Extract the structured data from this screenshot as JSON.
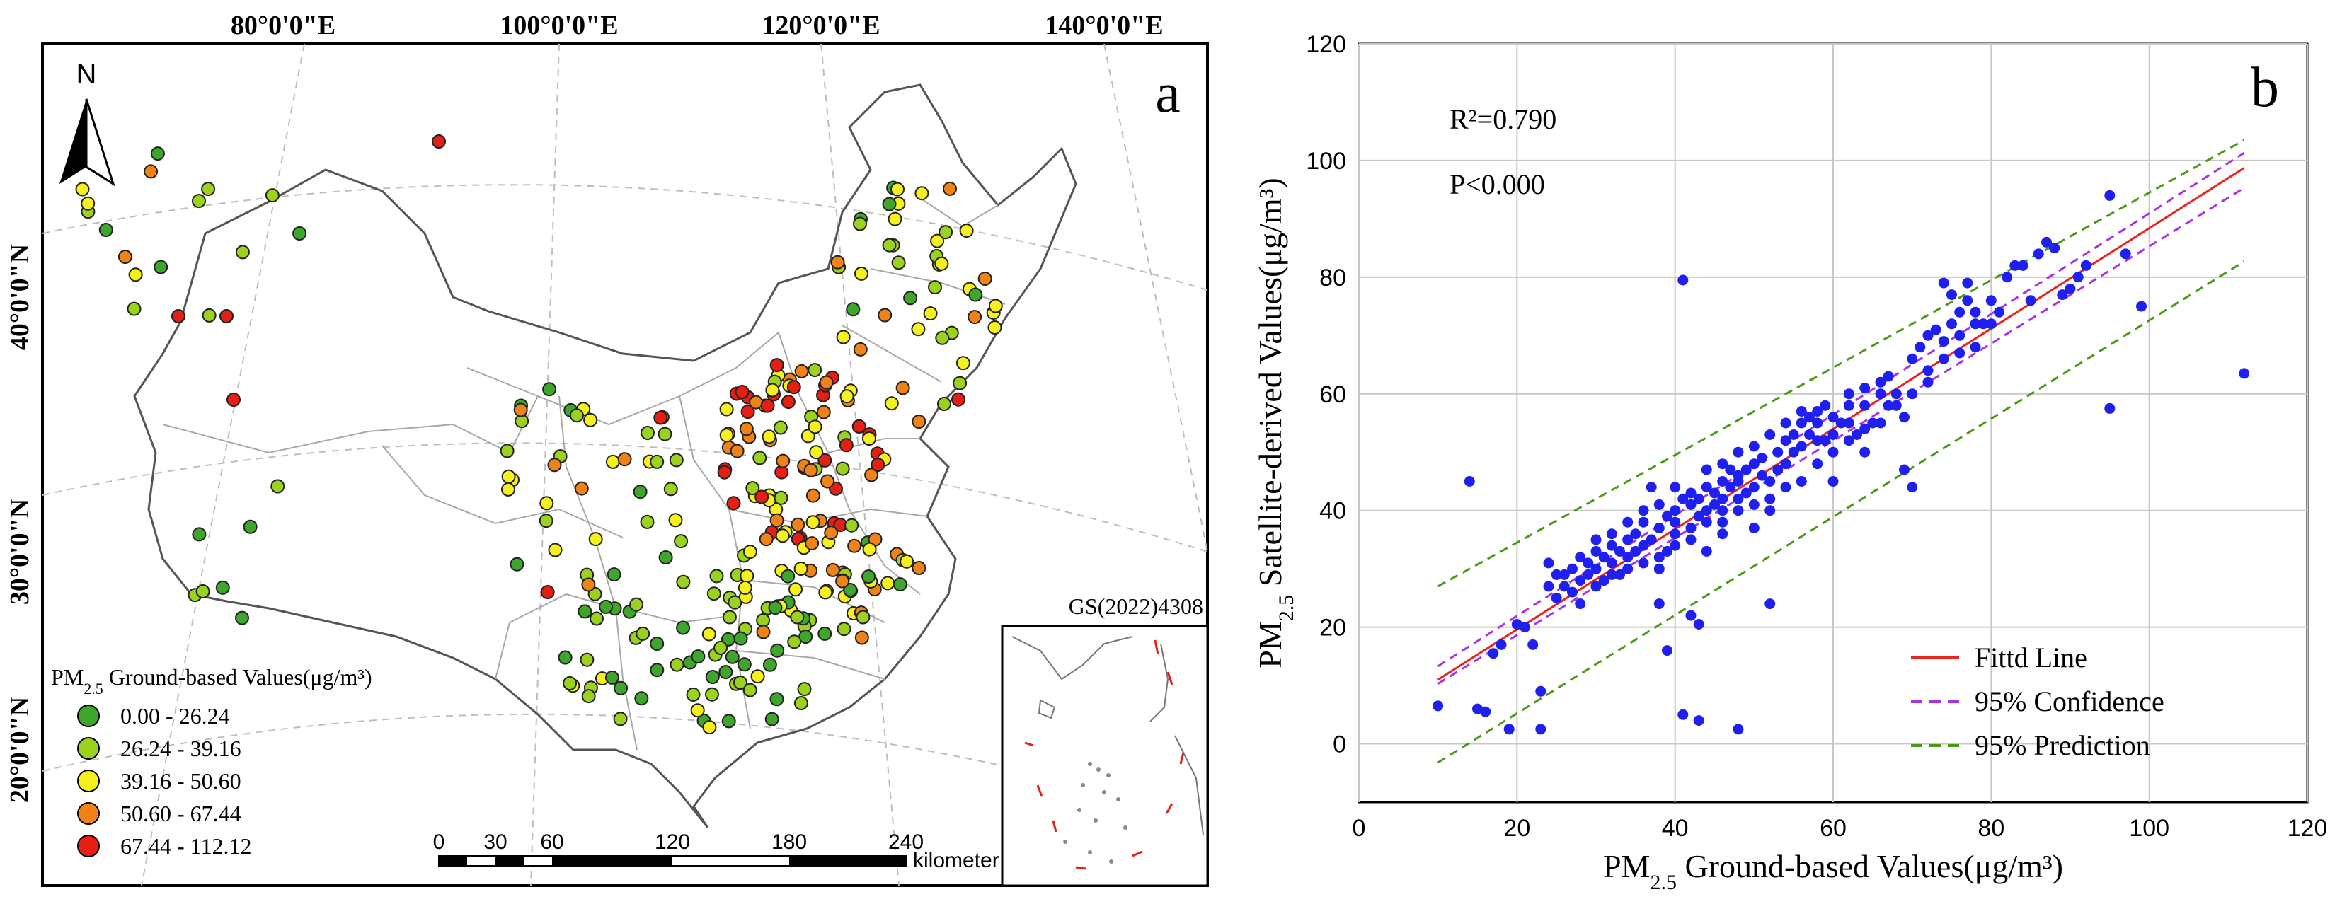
{
  "panel_a": {
    "panel_label": "a",
    "north_label": "N",
    "lon_labels": [
      "80°0'0\"E",
      "100°0'0\"E",
      "120°0'0\"E",
      "140°0'0\"E"
    ],
    "lat_labels": [
      "40°0'0\"N",
      "30°0'0\"N",
      "20°0'0\"N"
    ],
    "inset_label": "GS(2022)4308",
    "legend": {
      "title_prefix": "PM",
      "title_sub": "2.5",
      "title_suffix": " Ground-based Values(μg/m³)",
      "classes": [
        {
          "label": "0.00 - 26.24",
          "color": "#3ea62a"
        },
        {
          "label": "26.24 - 39.16",
          "color": "#9ad21e"
        },
        {
          "label": "39.16 - 50.60",
          "color": "#f5f01e"
        },
        {
          "label": "50.60 - 67.44",
          "color": "#f08218"
        },
        {
          "label": "67.44 - 112.12",
          "color": "#e61e14"
        }
      ]
    },
    "scale_bar": {
      "ticks": [
        "0",
        "30",
        "60",
        "120",
        "180",
        "240"
      ],
      "unit": "kilometer"
    }
  },
  "chart_data": {
    "type": "scatter",
    "panel_label": "b",
    "xlabel_prefix": "PM",
    "xlabel_sub": "2.5",
    "xlabel_suffix": " Ground-based Values(μg/m³)",
    "ylabel_prefix": "PM",
    "ylabel_sub": "2.5",
    "ylabel_suffix": " Satellite-derived Values(μg/m³)",
    "xlim": [
      0,
      120
    ],
    "ylim": [
      -10,
      120
    ],
    "xticks": [
      0,
      20,
      40,
      60,
      80,
      100,
      120
    ],
    "yticks": [
      0,
      20,
      40,
      60,
      80,
      100,
      120
    ],
    "grid": true,
    "r2_text": "R²=0.790",
    "p_text": "P<0.000",
    "fit": {
      "slope": 0.86,
      "intercept": 2.4,
      "x_range": [
        10,
        112
      ]
    },
    "confidence_band": {
      "lower": [
        [
          10,
          10.3
        ],
        [
          112,
          95.3
        ]
      ],
      "upper": [
        [
          10,
          13.3
        ],
        [
          112,
          101.3
        ]
      ]
    },
    "prediction_band": {
      "lower": [
        [
          10,
          -3.2
        ],
        [
          112,
          82.7
        ]
      ],
      "upper": [
        [
          10,
          27.0
        ],
        [
          112,
          103.5
        ]
      ]
    },
    "legend": [
      {
        "name": "Fittd Line",
        "color": "#e8241c",
        "style": "solid"
      },
      {
        "name": "95% Confidence",
        "color": "#a832e8",
        "style": "dashed"
      },
      {
        "name": "95% Prediction",
        "color": "#4a9a18",
        "style": "dashed"
      }
    ],
    "point_color": "#1f1ff0",
    "points": [
      [
        10,
        6.5
      ],
      [
        14,
        45
      ],
      [
        15,
        6
      ],
      [
        16,
        5.5
      ],
      [
        17,
        15.5
      ],
      [
        18,
        17
      ],
      [
        19,
        2.5
      ],
      [
        20,
        20.5
      ],
      [
        21,
        20
      ],
      [
        22,
        17
      ],
      [
        23,
        2.5
      ],
      [
        23,
        9
      ],
      [
        24,
        27
      ],
      [
        25,
        29
      ],
      [
        25,
        25
      ],
      [
        26,
        27
      ],
      [
        27,
        26
      ],
      [
        27,
        30
      ],
      [
        28,
        28
      ],
      [
        28,
        24
      ],
      [
        29,
        31
      ],
      [
        29,
        29
      ],
      [
        30,
        30
      ],
      [
        30,
        33
      ],
      [
        31,
        28
      ],
      [
        31,
        32
      ],
      [
        32,
        34
      ],
      [
        32,
        31
      ],
      [
        33,
        29
      ],
      [
        33,
        33
      ],
      [
        34,
        32
      ],
      [
        34,
        35
      ],
      [
        35,
        36
      ],
      [
        35,
        33
      ],
      [
        36,
        31
      ],
      [
        36,
        38
      ],
      [
        37,
        35
      ],
      [
        37,
        44
      ],
      [
        38,
        24
      ],
      [
        38,
        32
      ],
      [
        38,
        37
      ],
      [
        39,
        16
      ],
      [
        39,
        33
      ],
      [
        39,
        39
      ],
      [
        40,
        40
      ],
      [
        40,
        38
      ],
      [
        40,
        36
      ],
      [
        41,
        5
      ],
      [
        41,
        79.5
      ],
      [
        41,
        42
      ],
      [
        42,
        22
      ],
      [
        42,
        37
      ],
      [
        42,
        41
      ],
      [
        43,
        4
      ],
      [
        43,
        20.5
      ],
      [
        43,
        42
      ],
      [
        43,
        39
      ],
      [
        44,
        44
      ],
      [
        44,
        40
      ],
      [
        45,
        41
      ],
      [
        45,
        43
      ],
      [
        46,
        45
      ],
      [
        46,
        42
      ],
      [
        46,
        38
      ],
      [
        47,
        44
      ],
      [
        47,
        47
      ],
      [
        48,
        45
      ],
      [
        48,
        2.5
      ],
      [
        48,
        42
      ],
      [
        49,
        47
      ],
      [
        49,
        43
      ],
      [
        50,
        44
      ],
      [
        50,
        48
      ],
      [
        51,
        46
      ],
      [
        51,
        49
      ],
      [
        52,
        24
      ],
      [
        52,
        42
      ],
      [
        52,
        45
      ],
      [
        53,
        50
      ],
      [
        53,
        47
      ],
      [
        54,
        52
      ],
      [
        54,
        48
      ],
      [
        55,
        50
      ],
      [
        55,
        53
      ],
      [
        56,
        55
      ],
      [
        56,
        51
      ],
      [
        57,
        53
      ],
      [
        57,
        56
      ],
      [
        58,
        55
      ],
      [
        58,
        57
      ],
      [
        59,
        58
      ],
      [
        59,
        52
      ],
      [
        60,
        56
      ],
      [
        60,
        45
      ],
      [
        61,
        55
      ],
      [
        62,
        58
      ],
      [
        62,
        60
      ],
      [
        63,
        53
      ],
      [
        64,
        61
      ],
      [
        64,
        58
      ],
      [
        65,
        55
      ],
      [
        66,
        62
      ],
      [
        67,
        58
      ],
      [
        67,
        63
      ],
      [
        68,
        60
      ],
      [
        69,
        47
      ],
      [
        69,
        56
      ],
      [
        70,
        44
      ],
      [
        70,
        66
      ],
      [
        71,
        68
      ],
      [
        72,
        64
      ],
      [
        72,
        70
      ],
      [
        73,
        71
      ],
      [
        74,
        69
      ],
      [
        74,
        79
      ],
      [
        75,
        77
      ],
      [
        75,
        72
      ],
      [
        76,
        74
      ],
      [
        76,
        67
      ],
      [
        77,
        79
      ],
      [
        77,
        76
      ],
      [
        78,
        72
      ],
      [
        78,
        68
      ],
      [
        79,
        72
      ],
      [
        80,
        72
      ],
      [
        81,
        74
      ],
      [
        82,
        80
      ],
      [
        83,
        82
      ],
      [
        85,
        76
      ],
      [
        86,
        84
      ],
      [
        87,
        86
      ],
      [
        89,
        77
      ],
      [
        91,
        80
      ],
      [
        92,
        82
      ],
      [
        95,
        94
      ],
      [
        95,
        57.5
      ],
      [
        97,
        84
      ],
      [
        99,
        75
      ],
      [
        112,
        63.5
      ],
      [
        44,
        33
      ],
      [
        46,
        36
      ],
      [
        48,
        40
      ],
      [
        50,
        37
      ],
      [
        52,
        40
      ],
      [
        54,
        44
      ],
      [
        56,
        45
      ],
      [
        58,
        48
      ],
      [
        60,
        50
      ],
      [
        62,
        52
      ],
      [
        64,
        54
      ],
      [
        66,
        55
      ],
      [
        68,
        58
      ],
      [
        30,
        35
      ],
      [
        32,
        29
      ],
      [
        34,
        38
      ],
      [
        36,
        34
      ],
      [
        38,
        41
      ],
      [
        40,
        34
      ],
      [
        42,
        43
      ],
      [
        44,
        47
      ],
      [
        46,
        48
      ],
      [
        48,
        50
      ],
      [
        50,
        51
      ],
      [
        52,
        53
      ],
      [
        54,
        55
      ],
      [
        56,
        57
      ],
      [
        24,
        31
      ],
      [
        26,
        29
      ],
      [
        28,
        32
      ],
      [
        30,
        27
      ],
      [
        32,
        36
      ],
      [
        34,
        30
      ],
      [
        36,
        40
      ],
      [
        38,
        30
      ],
      [
        40,
        44
      ],
      [
        42,
        35
      ],
      [
        44,
        38
      ],
      [
        46,
        40
      ],
      [
        48,
        46
      ],
      [
        50,
        41
      ],
      [
        58,
        52
      ],
      [
        60,
        53
      ],
      [
        62,
        55
      ],
      [
        64,
        50
      ],
      [
        66,
        60
      ],
      [
        70,
        60
      ],
      [
        72,
        62
      ],
      [
        74,
        66
      ],
      [
        76,
        70
      ],
      [
        78,
        74
      ],
      [
        80,
        76
      ],
      [
        84,
        82
      ],
      [
        88,
        85
      ],
      [
        90,
        78
      ]
    ]
  }
}
